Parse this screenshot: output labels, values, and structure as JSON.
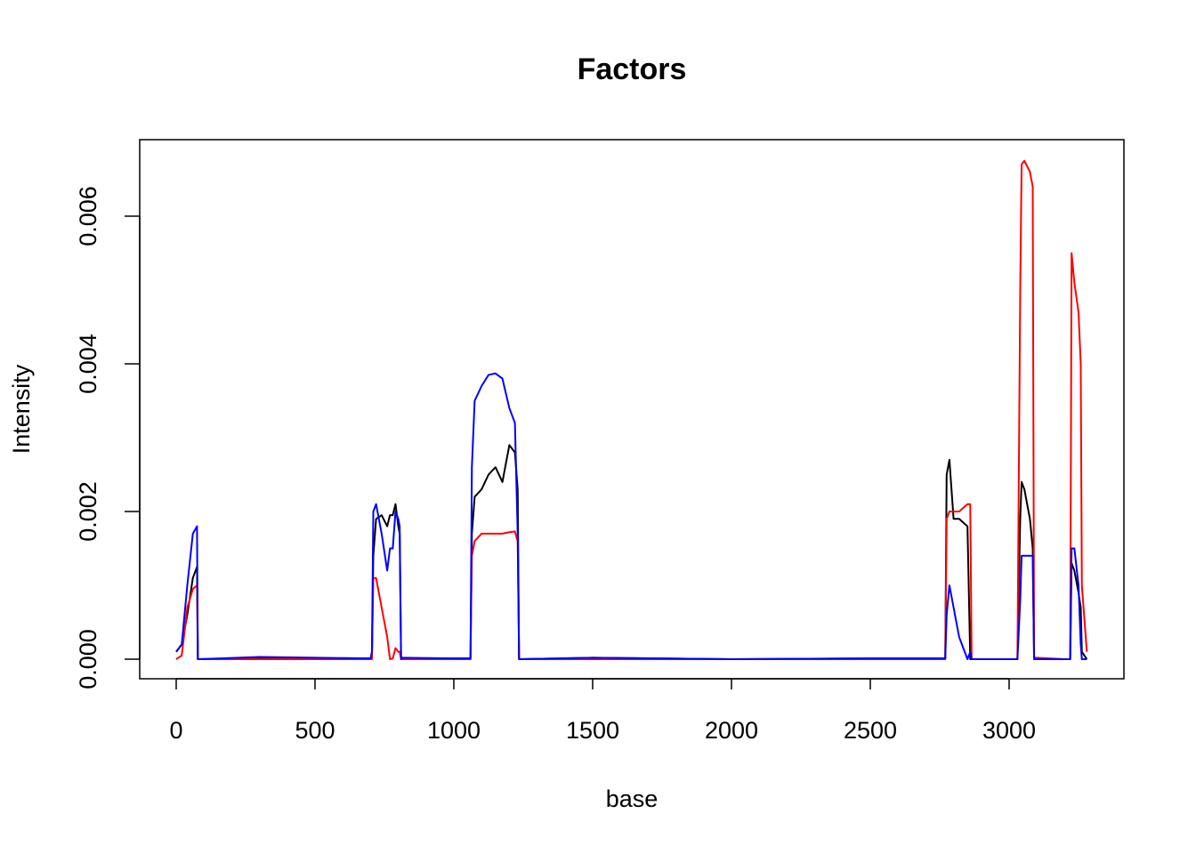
{
  "chart_data": {
    "type": "line",
    "title": "Factors",
    "xlabel": "base",
    "ylabel": "Intensity",
    "x": [
      0,
      20,
      40,
      60,
      75,
      78,
      80,
      300,
      700,
      705,
      710,
      720,
      740,
      760,
      770,
      780,
      790,
      800,
      805,
      810,
      815,
      1000,
      1060,
      1065,
      1075,
      1100,
      1125,
      1150,
      1175,
      1200,
      1220,
      1230,
      1235,
      1500,
      2000,
      2500,
      2770,
      2775,
      2785,
      2800,
      2820,
      2850,
      2860,
      2865,
      3030,
      3040,
      3045,
      3055,
      3075,
      3085,
      3090,
      3100,
      3200,
      3220,
      3225,
      3235,
      3250,
      3258,
      3262,
      3280
    ],
    "series": [
      {
        "color": "#000000",
        "values": [
          0.0001,
          0.0002,
          0.0006,
          0.0011,
          0.00125,
          0,
          0,
          2e-05,
          1e-05,
          2e-05,
          0.0014,
          0.0019,
          0.00195,
          0.0018,
          0.00195,
          0.00195,
          0.0021,
          0.0018,
          0.0017,
          0,
          0,
          1e-05,
          1e-05,
          0.0017,
          0.0022,
          0.0023,
          0.0025,
          0.0026,
          0.0024,
          0.0029,
          0.0028,
          0.0023,
          0,
          2e-05,
          0,
          1e-05,
          1e-05,
          0.0025,
          0.0027,
          0.0019,
          0.0019,
          0.0018,
          0,
          0,
          0,
          0.0019,
          0.0024,
          0.0023,
          0.0019,
          0.0015,
          0,
          0,
          0,
          0,
          0.0013,
          0.0012,
          0.0009,
          0.0007,
          0.0001,
          0
        ]
      },
      {
        "color": "#ff0000",
        "values": [
          0,
          5e-05,
          0.0007,
          0.00095,
          0.001,
          0,
          0,
          0,
          0,
          0,
          0.0011,
          0.0011,
          0.0007,
          0.0003,
          0,
          1e-05,
          0.00015,
          0.0001,
          0.0001,
          0,
          0,
          0,
          0,
          0.0014,
          0.0016,
          0.0017,
          0.0017,
          0.0017,
          0.0017,
          0.00172,
          0.00173,
          0.0016,
          0,
          0,
          0,
          0,
          0,
          0.0019,
          0.002,
          0.002,
          0.002,
          0.0021,
          0.0021,
          0,
          0,
          0.005,
          0.0067,
          0.00675,
          0.0066,
          0.0064,
          2e-05,
          2e-05,
          0,
          0,
          0.0055,
          0.0051,
          0.0047,
          0.004,
          0.001,
          0.0001
        ]
      },
      {
        "color": "#0000ff",
        "values": [
          0.0001,
          0.0002,
          0.001,
          0.0017,
          0.0018,
          0,
          0,
          3e-05,
          1e-05,
          0.0001,
          0.002,
          0.0021,
          0.0017,
          0.0012,
          0.0015,
          0.0015,
          0.002,
          0.0019,
          0.0018,
          0,
          2e-05,
          1e-05,
          1e-05,
          0.0026,
          0.0035,
          0.0037,
          0.00385,
          0.00387,
          0.0038,
          0.0034,
          0.0032,
          0.0017,
          0,
          2e-05,
          0,
          1e-05,
          1e-05,
          0.0006,
          0.001,
          0.0007,
          0.0003,
          0,
          0.0001,
          0,
          0,
          0.0008,
          0.0014,
          0.0014,
          0.0014,
          0.0014,
          0,
          0,
          0,
          0,
          0.0015,
          0.0015,
          0.001,
          0.0002,
          0,
          0
        ]
      }
    ],
    "xlim": [
      -131.4,
      3413.5
    ],
    "xticks": [
      0,
      500,
      1000,
      1500,
      2000,
      2500,
      3000
    ],
    "ylim": [
      -0.000265,
      0.007036
    ],
    "yticks": [
      {
        "value": 0,
        "label": "0.000"
      },
      {
        "value": 0.002,
        "label": "0.002"
      },
      {
        "value": 0.004,
        "label": "0.004"
      },
      {
        "value": 0.006,
        "label": "0.006"
      }
    ],
    "grid": false
  }
}
